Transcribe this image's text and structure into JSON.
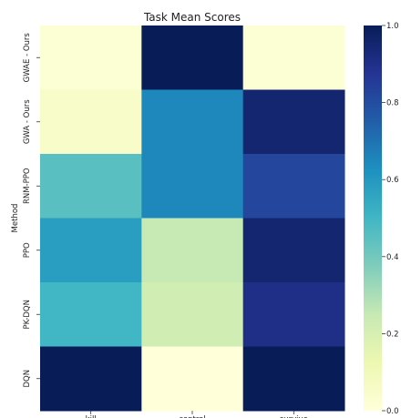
{
  "chart_data": {
    "type": "heatmap",
    "title": "Task Mean Scores",
    "xlabel": "",
    "ylabel": "Method",
    "x_categories": [
      "kill",
      "control",
      "survive"
    ],
    "y_categories": [
      "GWAE - Ours",
      "GWA - Ours",
      "RNM-PPO",
      "PPO",
      "PK-DQN",
      "DQN"
    ],
    "values": [
      [
        0.02,
        1.0,
        0.02
      ],
      [
        0.05,
        0.65,
        0.95
      ],
      [
        0.45,
        0.65,
        0.82
      ],
      [
        0.58,
        0.25,
        0.95
      ],
      [
        0.5,
        0.22,
        0.9
      ],
      [
        1.0,
        0.0,
        1.0
      ]
    ],
    "colorbar": {
      "range": [
        0,
        1
      ],
      "ticks": [
        "0.0",
        "0.2",
        "0.4",
        "0.6",
        "0.8",
        "1.0"
      ],
      "colormap": "YlGnBu"
    }
  }
}
